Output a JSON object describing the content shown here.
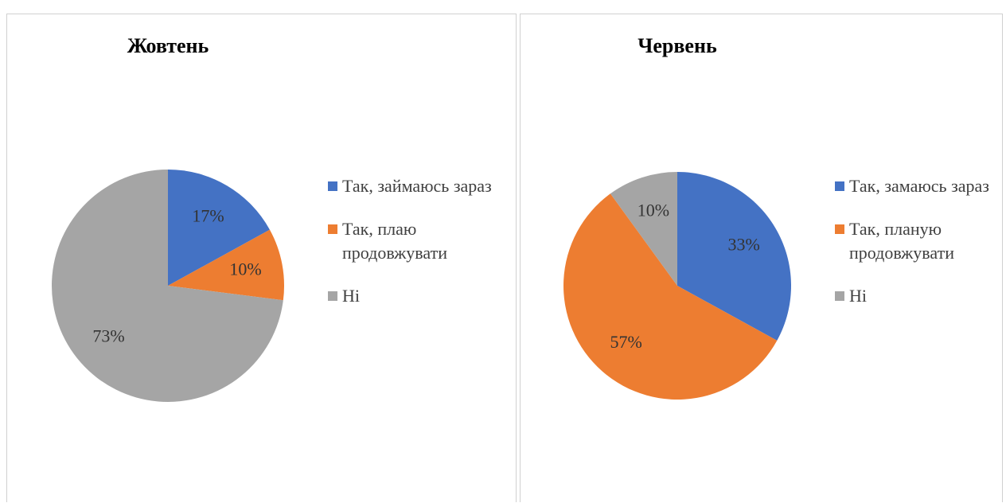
{
  "chart_data": [
    {
      "type": "pie",
      "title": "Жовтень",
      "categories": [
        "Так, займаюсь зараз",
        "Так, плаю продовжувати",
        "Ні"
      ],
      "values": [
        17,
        10,
        73
      ],
      "value_labels": [
        "17%",
        "10%",
        "73%"
      ],
      "colors": [
        "#4472c4",
        "#ed7d31",
        "#a5a5a5"
      ],
      "legend": "right"
    },
    {
      "type": "pie",
      "title": "Червень",
      "categories": [
        "Так, замаюсь зараз",
        "Так, планую продовжувати",
        "Ні"
      ],
      "values": [
        33,
        57,
        10
      ],
      "value_labels": [
        "33%",
        "57%",
        "10%"
      ],
      "colors": [
        "#4472c4",
        "#ed7d31",
        "#a5a5a5"
      ],
      "legend": "right"
    }
  ]
}
